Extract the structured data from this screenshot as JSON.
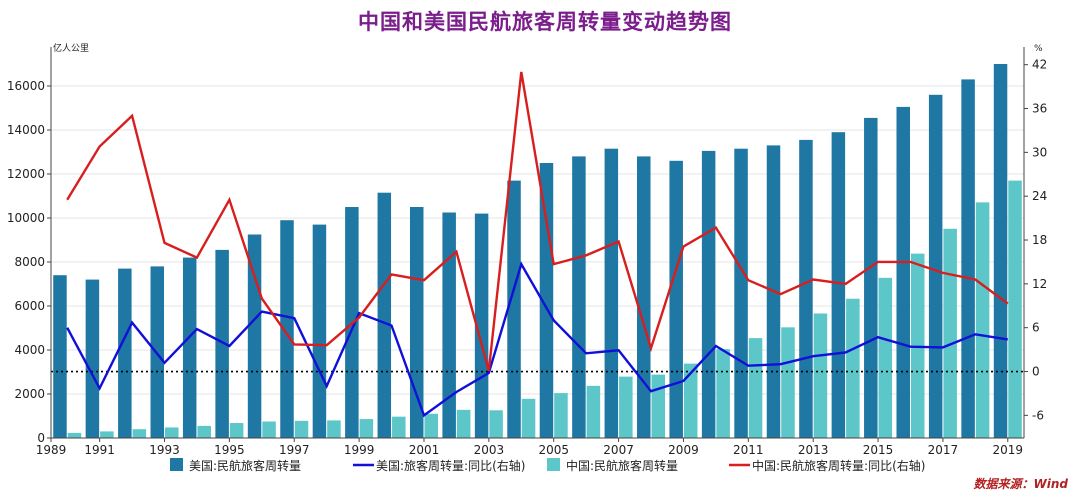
{
  "title": "中国和美国民航旅客周转量变动趋势图",
  "source": "数据来源：Wind",
  "colors": {
    "us_bar": "#1F78A3",
    "cn_bar": "#5CC6C8",
    "us_line": "#1010D8",
    "cn_line": "#D81E1E",
    "title": "#7B1E8C"
  },
  "chart_data": {
    "type": "bar+line",
    "x": [
      1990,
      1991,
      1992,
      1993,
      1994,
      1995,
      1996,
      1997,
      1998,
      1999,
      2000,
      2001,
      2002,
      2003,
      2004,
      2005,
      2006,
      2007,
      2008,
      2009,
      2010,
      2011,
      2012,
      2013,
      2014,
      2015,
      2016,
      2017,
      2018,
      2019
    ],
    "x_tick_labels": [
      "1989",
      "1991",
      "1993",
      "1995",
      "1997",
      "1999",
      "2001",
      "2003",
      "2005",
      "2007",
      "2009",
      "2011",
      "2013",
      "2015",
      "2017",
      "2019"
    ],
    "left_axis": {
      "unit": "亿人公里",
      "range": [
        0,
        17500
      ],
      "ticks": [
        0,
        2000,
        4000,
        6000,
        8000,
        10000,
        12000,
        14000,
        16000
      ]
    },
    "right_axis": {
      "unit": "%",
      "range": [
        -9.1,
        43.6
      ],
      "ticks": [
        -6,
        0,
        6,
        12,
        18,
        24,
        30,
        36,
        42
      ]
    },
    "reference_line": {
      "axis": "right",
      "value": 0,
      "style": "dotted"
    },
    "legend_placement": "bottom",
    "series": [
      {
        "name": "美国:民航旅客周转量",
        "type": "bar",
        "axis": "left",
        "values": [
          7400,
          7200,
          7700,
          7800,
          8200,
          8550,
          9250,
          9900,
          9700,
          10500,
          11150,
          10500,
          10250,
          10200,
          11700,
          12500,
          12800,
          13150,
          12800,
          12600,
          13050,
          13150,
          13300,
          13550,
          13900,
          14550,
          15050,
          15600,
          16300,
          17000
        ]
      },
      {
        "name": "中国:民航旅客周转量",
        "type": "bar",
        "axis": "left",
        "values": [
          230,
          300,
          400,
          480,
          550,
          680,
          750,
          780,
          800,
          860,
          970,
          1100,
          1280,
          1260,
          1780,
          2040,
          2370,
          2790,
          2880,
          3380,
          4040,
          4540,
          5030,
          5660,
          6330,
          7280,
          8380,
          9510,
          10710,
          11700
        ]
      },
      {
        "name": "美国:旅客周转量:同比(右轴)",
        "type": "line",
        "axis": "right",
        "values": [
          6.0,
          -2.3,
          6.7,
          1.2,
          5.8,
          3.5,
          8.2,
          7.3,
          -2.0,
          8.0,
          6.3,
          -6.0,
          -2.8,
          -0.2,
          14.7,
          7.0,
          2.5,
          2.9,
          -2.7,
          -1.3,
          3.5,
          0.8,
          1.0,
          2.1,
          2.6,
          4.7,
          3.4,
          3.3,
          5.1,
          4.4
        ]
      },
      {
        "name": "中国:民航旅客周转量:同比(右轴)",
        "type": "line",
        "axis": "right",
        "values": [
          23.5,
          30.8,
          35.0,
          17.6,
          15.6,
          23.5,
          10.0,
          3.7,
          3.6,
          7.4,
          13.3,
          12.5,
          16.4,
          0.1,
          41.0,
          14.7,
          15.9,
          17.8,
          3.2,
          17.1,
          19.7,
          12.5,
          10.6,
          12.6,
          12.0,
          15.0,
          15.0,
          13.5,
          12.6,
          9.3
        ]
      }
    ]
  }
}
